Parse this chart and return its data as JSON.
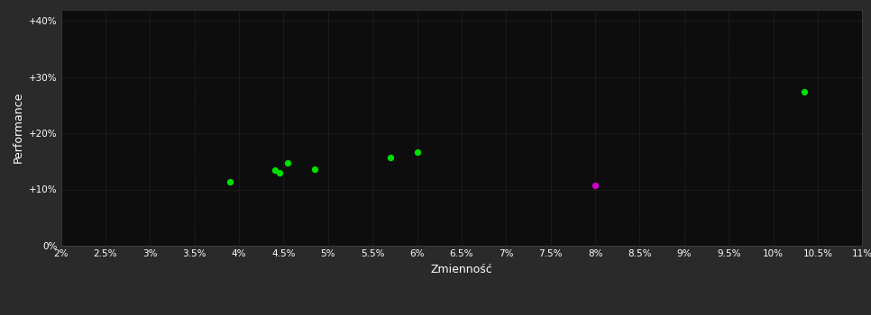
{
  "figure_bg_color": "#2a2a2a",
  "plot_bg_color": "#0d0d0d",
  "grid_color": "#404040",
  "text_color": "#ffffff",
  "xlabel": "Zmienność",
  "ylabel": "Performance",
  "xlim": [
    0.02,
    0.11
  ],
  "ylim": [
    0.0,
    0.42
  ],
  "xticks": [
    0.02,
    0.025,
    0.03,
    0.035,
    0.04,
    0.045,
    0.05,
    0.055,
    0.06,
    0.065,
    0.07,
    0.075,
    0.08,
    0.085,
    0.09,
    0.095,
    0.1,
    0.105,
    0.11
  ],
  "xtick_labels": [
    "2%",
    "2.5%",
    "3%",
    "3.5%",
    "4%",
    "4.5%",
    "5%",
    "5.5%",
    "6%",
    "6.5%",
    "7%",
    "7.5%",
    "8%",
    "8.5%",
    "9%",
    "9.5%",
    "10%",
    "10.5%",
    "11%"
  ],
  "yticks": [
    0.0,
    0.1,
    0.2,
    0.3,
    0.4
  ],
  "ytick_labels": [
    "0%",
    "+10%",
    "+20%",
    "+30%",
    "+40%"
  ],
  "green_points": [
    [
      0.039,
      0.113
    ],
    [
      0.044,
      0.135
    ],
    [
      0.0445,
      0.13
    ],
    [
      0.0455,
      0.147
    ],
    [
      0.0485,
      0.136
    ],
    [
      0.057,
      0.157
    ],
    [
      0.06,
      0.166
    ],
    [
      0.1035,
      0.273
    ]
  ],
  "magenta_points": [
    [
      0.08,
      0.107
    ]
  ],
  "green_color": "#00e000",
  "magenta_color": "#cc00cc",
  "marker_size": 28
}
